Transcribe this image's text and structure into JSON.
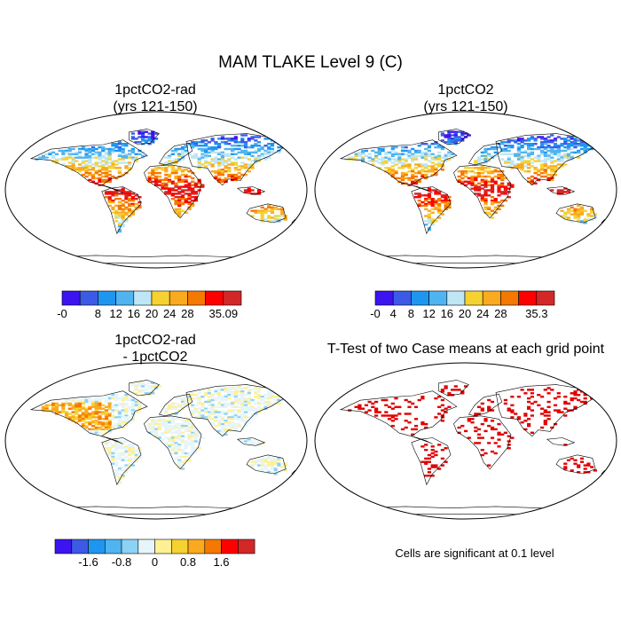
{
  "figure": {
    "title": "MAM TLAKE Level 9 (C)",
    "significance_note": "Cells are significant at 0.1 level"
  },
  "chart_data": [
    {
      "type": "heatmap",
      "projection": "Robinson",
      "title_line1": "1pctCO2-rad",
      "title_line2": "(yrs 121-150)",
      "colorbar": {
        "colors": [
          "#3c14f0",
          "#3c5ae6",
          "#1e96f0",
          "#50b4f0",
          "#bee6f5",
          "#f5d232",
          "#faaa1e",
          "#f57800",
          "#ff0000",
          "#d22828"
        ],
        "tick_labels": [
          "-0",
          "8",
          "12",
          "16",
          "20",
          "24",
          "28",
          "35.09"
        ],
        "tick_positions": [
          0,
          2,
          3,
          4,
          5,
          6,
          7,
          9
        ]
      }
    },
    {
      "type": "heatmap",
      "projection": "Robinson",
      "title_line1": "1pctCO2",
      "title_line2": "(yrs 121-150)",
      "colorbar": {
        "colors": [
          "#3c14f0",
          "#3c5ae6",
          "#1e96f0",
          "#50b4f0",
          "#bee6f5",
          "#f5d232",
          "#faaa1e",
          "#f57800",
          "#ff0000",
          "#d22828"
        ],
        "tick_labels": [
          "-0",
          "4",
          "8",
          "12",
          "16",
          "20",
          "24",
          "28",
          "35.3"
        ],
        "tick_positions": [
          0,
          1,
          2,
          3,
          4,
          5,
          6,
          7,
          9
        ]
      }
    },
    {
      "type": "heatmap",
      "projection": "Robinson",
      "title_line1": "1pctCO2-rad",
      "title_line2": "- 1pctCO2",
      "colorbar": {
        "colors": [
          "#3c14f0",
          "#3c5ae6",
          "#1e96f0",
          "#50b4f0",
          "#8cd2f5",
          "#e6f5fa",
          "#fff096",
          "#f5d232",
          "#faaa1e",
          "#f57800",
          "#ff0000",
          "#d22828"
        ],
        "tick_labels": [
          "-1.6",
          "-0.8",
          "0",
          "0.8",
          "1.6"
        ],
        "tick_positions": [
          2,
          4,
          6,
          8,
          10
        ]
      }
    },
    {
      "type": "heatmap",
      "projection": "Robinson",
      "title_line1": "T-Test of two Case means at each grid point",
      "significant_color": "#e00000"
    }
  ]
}
